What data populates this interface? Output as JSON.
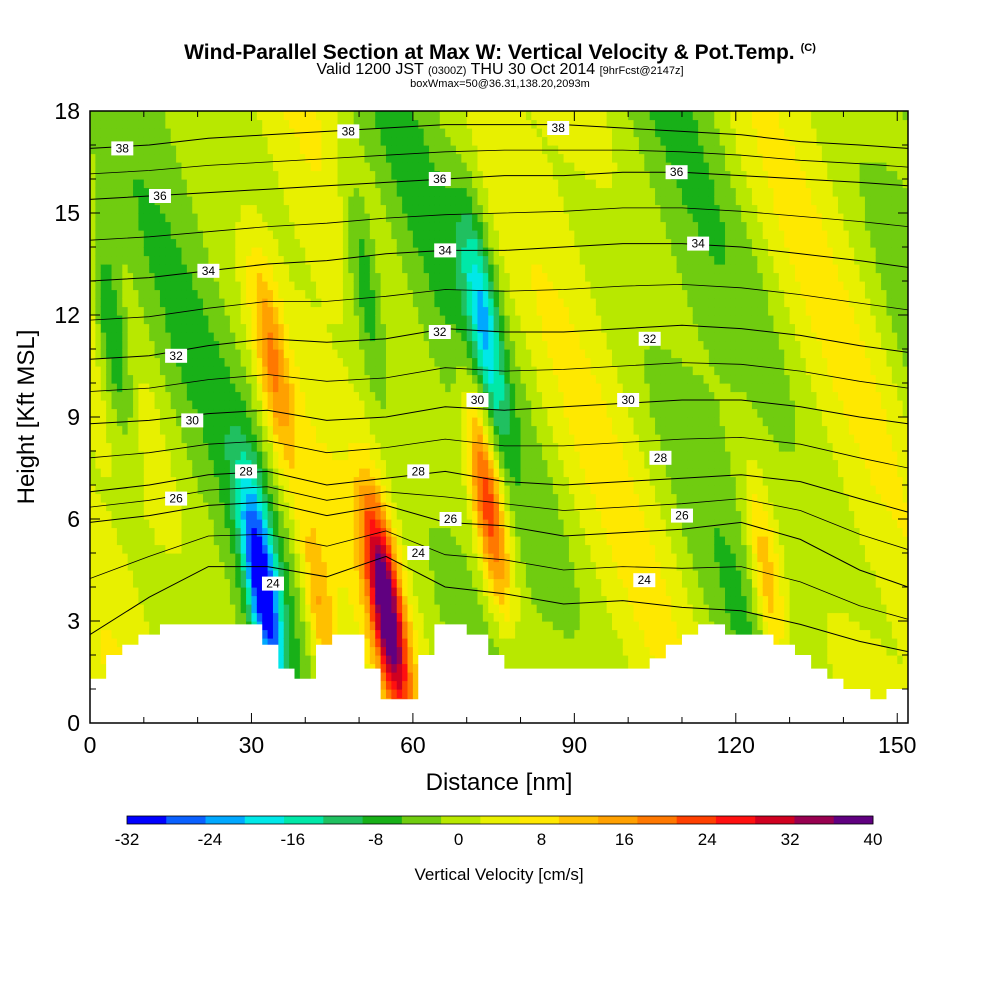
{
  "title": "Wind-Parallel Section at Max W: Vertical Velocity & Pot.Temp.",
  "title_mark": "(C)",
  "subtitle": {
    "valid": "Valid 1200 JST",
    "zulu": "(0300Z)",
    "date": "THU 30 Oct 2014",
    "fcst": "[9hrFcst@2147z]"
  },
  "note": "boxWmax=50@36.31,138.20,2093m",
  "chart_data": {
    "type": "heatmap",
    "xlabel": "Distance [nm]",
    "ylabel": "Height [Kft MSL]",
    "xlim": [
      0,
      152
    ],
    "ylim": [
      0,
      18
    ],
    "xticks": [
      0,
      30,
      60,
      90,
      120,
      150
    ],
    "yticks": [
      0,
      3,
      6,
      9,
      12,
      15,
      18
    ],
    "colorbar": {
      "label": "Vertical Velocity [cm/s]",
      "levels": [
        -32,
        -28,
        -24,
        -20,
        -16,
        -12,
        -8,
        -4,
        0,
        4,
        8,
        12,
        16,
        20,
        24,
        28,
        32,
        36,
        40
      ],
      "tick_labels": [
        -32,
        -24,
        -16,
        -8,
        0,
        8,
        16,
        24,
        32,
        40
      ],
      "colors": [
        "#0000ff",
        "#0a60ff",
        "#00a8ff",
        "#00e8e8",
        "#00e8a8",
        "#20c060",
        "#18b018",
        "#70cc10",
        "#b8e800",
        "#e8f000",
        "#ffe800",
        "#ffc000",
        "#ffa000",
        "#ff7800",
        "#ff4000",
        "#ff1010",
        "#d00020",
        "#980050",
        "#600080"
      ]
    },
    "updraft_cores": [
      {
        "x": 34,
        "y": 10.5,
        "w": 16
      },
      {
        "x": 55,
        "y": 3.5,
        "w": 40
      },
      {
        "x": 74,
        "y": 6.5,
        "w": 28
      },
      {
        "x": 126,
        "y": 4.0,
        "w": 16
      },
      {
        "x": 43,
        "y": 3.0,
        "w": 16
      }
    ],
    "downdraft_cores": [
      {
        "x": 32,
        "y": 4.0,
        "w": -32
      },
      {
        "x": 4,
        "y": 11.5,
        "w": -16
      },
      {
        "x": 73,
        "y": 12.0,
        "w": -18
      },
      {
        "x": 51,
        "y": 13.0,
        "w": -12
      }
    ],
    "isentropes": [
      {
        "label": "24",
        "heights": [
          2.6,
          3.7,
          4.6,
          4.6,
          4.3,
          4.9,
          4.0,
          3.8,
          3.5,
          3.6,
          3.4,
          3.3,
          2.9,
          2.4,
          2.1
        ]
      },
      {
        "label": "26",
        "heights": [
          5.9,
          6.1,
          6.4,
          6.5,
          6.1,
          6.4,
          5.9,
          5.8,
          5.5,
          5.6,
          5.7,
          5.9,
          5.4,
          4.5,
          4.0
        ]
      },
      {
        "label": "28",
        "heights": [
          6.8,
          7.0,
          7.3,
          7.4,
          7.0,
          7.2,
          7.4,
          7.1,
          7.0,
          7.1,
          7.2,
          7.3,
          7.1,
          6.6,
          6.2
        ]
      },
      {
        "label": "30",
        "heights": [
          8.8,
          8.9,
          9.1,
          9.2,
          8.9,
          9.0,
          9.3,
          9.2,
          9.3,
          9.4,
          9.5,
          9.5,
          9.3,
          9.0,
          8.8
        ]
      },
      {
        "label": "32",
        "heights": [
          10.7,
          10.8,
          11.1,
          11.3,
          11.2,
          11.3,
          11.6,
          11.5,
          11.5,
          11.6,
          11.7,
          11.6,
          11.4,
          11.1,
          10.9
        ]
      },
      {
        "label": "34",
        "heights": [
          13.0,
          13.1,
          13.3,
          13.5,
          13.6,
          13.8,
          13.9,
          13.9,
          14.0,
          14.1,
          14.1,
          14.0,
          13.8,
          13.6,
          13.4
        ]
      },
      {
        "label": "36",
        "heights": [
          15.4,
          15.5,
          15.6,
          15.7,
          15.8,
          15.9,
          16.0,
          16.1,
          16.1,
          16.2,
          16.2,
          16.1,
          16.0,
          15.9,
          15.8
        ]
      },
      {
        "label": "38",
        "heights": [
          16.9,
          17.0,
          17.2,
          17.3,
          17.4,
          17.5,
          17.6,
          17.6,
          17.6,
          17.5,
          17.4,
          17.3,
          17.1,
          17.0,
          16.9
        ]
      }
    ],
    "isentrope_x": [
      0,
      11,
      22,
      33,
      44,
      55,
      66,
      77,
      88,
      99,
      110,
      121,
      132,
      143,
      152
    ],
    "isentrope_labels": [
      {
        "text": "38",
        "x": 6,
        "y": 16.9
      },
      {
        "text": "38",
        "x": 48,
        "y": 17.4
      },
      {
        "text": "38",
        "x": 87,
        "y": 17.5
      },
      {
        "text": "36",
        "x": 13,
        "y": 15.5
      },
      {
        "text": "36",
        "x": 65,
        "y": 16.0
      },
      {
        "text": "36",
        "x": 109,
        "y": 16.2
      },
      {
        "text": "34",
        "x": 22,
        "y": 13.3
      },
      {
        "text": "34",
        "x": 66,
        "y": 13.9
      },
      {
        "text": "34",
        "x": 113,
        "y": 14.1
      },
      {
        "text": "32",
        "x": 16,
        "y": 10.8
      },
      {
        "text": "32",
        "x": 65,
        "y": 11.5
      },
      {
        "text": "32",
        "x": 104,
        "y": 11.3
      },
      {
        "text": "30",
        "x": 19,
        "y": 8.9
      },
      {
        "text": "30",
        "x": 72,
        "y": 9.5
      },
      {
        "text": "30",
        "x": 100,
        "y": 9.5
      },
      {
        "text": "28",
        "x": 29,
        "y": 7.4
      },
      {
        "text": "28",
        "x": 61,
        "y": 7.4
      },
      {
        "text": "28",
        "x": 106,
        "y": 7.8
      },
      {
        "text": "26",
        "x": 16,
        "y": 6.6
      },
      {
        "text": "26",
        "x": 67,
        "y": 6.0
      },
      {
        "text": "26",
        "x": 110,
        "y": 6.1
      },
      {
        "text": "24",
        "x": 34,
        "y": 4.1
      },
      {
        "text": "24",
        "x": 61,
        "y": 5.0
      },
      {
        "text": "24",
        "x": 103,
        "y": 4.2
      }
    ],
    "terrain": [
      [
        0,
        1.3
      ],
      [
        3,
        1.3
      ],
      [
        3,
        2.0
      ],
      [
        6,
        2.0
      ],
      [
        6,
        2.3
      ],
      [
        9,
        2.3
      ],
      [
        9,
        2.6
      ],
      [
        13,
        2.6
      ],
      [
        13,
        2.9
      ],
      [
        32,
        2.9
      ],
      [
        32,
        2.3
      ],
      [
        35,
        2.3
      ],
      [
        35,
        1.6
      ],
      [
        38,
        1.6
      ],
      [
        38,
        1.3
      ],
      [
        42,
        1.3
      ],
      [
        42,
        2.3
      ],
      [
        45,
        2.3
      ],
      [
        45,
        2.6
      ],
      [
        51,
        2.6
      ],
      [
        51,
        1.6
      ],
      [
        54,
        1.6
      ],
      [
        54,
        0.7
      ],
      [
        61,
        0.7
      ],
      [
        61,
        2.0
      ],
      [
        64,
        2.0
      ],
      [
        64,
        2.9
      ],
      [
        70,
        2.9
      ],
      [
        70,
        2.6
      ],
      [
        74,
        2.6
      ],
      [
        74,
        2.0
      ],
      [
        77,
        2.0
      ],
      [
        77,
        1.6
      ],
      [
        104,
        1.6
      ],
      [
        104,
        1.9
      ],
      [
        107,
        1.9
      ],
      [
        107,
        2.3
      ],
      [
        110,
        2.3
      ],
      [
        110,
        2.6
      ],
      [
        113,
        2.6
      ],
      [
        113,
        2.9
      ],
      [
        118,
        2.9
      ],
      [
        118,
        2.6
      ],
      [
        127,
        2.6
      ],
      [
        127,
        2.3
      ],
      [
        131,
        2.3
      ],
      [
        131,
        2.0
      ],
      [
        134,
        2.0
      ],
      [
        134,
        1.6
      ],
      [
        137,
        1.6
      ],
      [
        137,
        1.3
      ],
      [
        140,
        1.3
      ],
      [
        140,
        1.0
      ],
      [
        145,
        1.0
      ],
      [
        145,
        0.7
      ],
      [
        148,
        0.7
      ],
      [
        148,
        1.0
      ],
      [
        152,
        1.0
      ]
    ]
  }
}
